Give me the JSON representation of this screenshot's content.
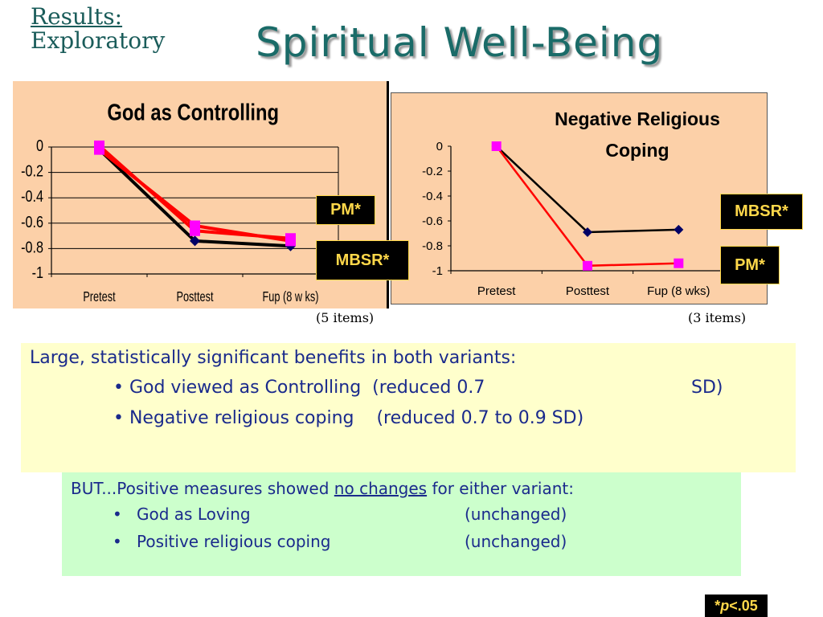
{
  "header": {
    "section_line1": "Results:",
    "section_line2": "Exploratory",
    "title": "Spiritual Well-Being"
  },
  "chart_data": [
    {
      "type": "line",
      "title": "God as Controlling",
      "categories": [
        "Pretest",
        "Posttest",
        "Fup (8 w ks)"
      ],
      "ylim": [
        -1,
        0
      ],
      "yticks": [
        0,
        -0.2,
        -0.4,
        -0.6,
        -0.8,
        -1
      ],
      "ytick_labels": [
        "0",
        "-0.2",
        "-0.4",
        "-0.6",
        "-0.8",
        "-1"
      ],
      "grid": true,
      "series": [
        {
          "name": "MBSR*",
          "color": "#000066",
          "line_color": "#000000",
          "marker": "diamond",
          "values": [
            -0.02,
            -0.74,
            -0.78
          ]
        },
        {
          "name": "PM*",
          "color": "#ff00ff",
          "line_color": "#ff0000",
          "marker": "square",
          "values": [
            0.01,
            -0.66,
            -0.72
          ]
        },
        {
          "name": "",
          "color": "#ff00ff",
          "line_color": "#ff0000",
          "marker": "square",
          "values": [
            -0.02,
            -0.62,
            -0.74
          ]
        }
      ],
      "footnote": "(5 items)"
    },
    {
      "type": "line",
      "title": "Negative Religious Coping",
      "categories": [
        "Pretest",
        "Posttest",
        "Fup (8 wks)"
      ],
      "ylim": [
        -1,
        0
      ],
      "yticks": [
        0,
        -0.2,
        -0.4,
        -0.6,
        -0.8,
        -1
      ],
      "ytick_labels": [
        "0",
        "-0.2",
        "-0.4",
        "-0.6",
        "-0.8",
        "-1"
      ],
      "grid": false,
      "series": [
        {
          "name": "MBSR*",
          "color": "#000066",
          "line_color": "#000000",
          "marker": "diamond",
          "values": [
            0,
            -0.69,
            -0.67
          ]
        },
        {
          "name": "PM*",
          "color": "#ff00ff",
          "line_color": "#ff0000",
          "marker": "square",
          "values": [
            0,
            -0.96,
            -0.94
          ]
        }
      ],
      "footnote": "(3 items)"
    }
  ],
  "badges": {
    "chart1_pm": "PM*",
    "chart1_mbsr": "MBSR*",
    "chart2_mbsr": "MBSR*",
    "chart2_pm": "PM*"
  },
  "summary": {
    "line1": "Large, statistically significant benefits in both variants:",
    "bullet1_text": "• God viewed as Controlling  (reduced 0.7",
    "bullet1_sd": "SD)",
    "bullet2_text": "• Negative religious coping    (reduced 0.7 to 0.9 SD)"
  },
  "positive": {
    "intro_before": "BUT...Positive measures showed ",
    "intro_underlined": "no changes",
    "intro_after": " for either variant:",
    "bullet": "•",
    "item1_label": "God as Loving",
    "item1_status": "(unchanged)",
    "item2_label": "Positive religious coping",
    "item2_status": "(unchanged)"
  },
  "footer": {
    "pvalue_star": "*",
    "pvalue_p": "p",
    "pvalue_rest": "<.05"
  }
}
